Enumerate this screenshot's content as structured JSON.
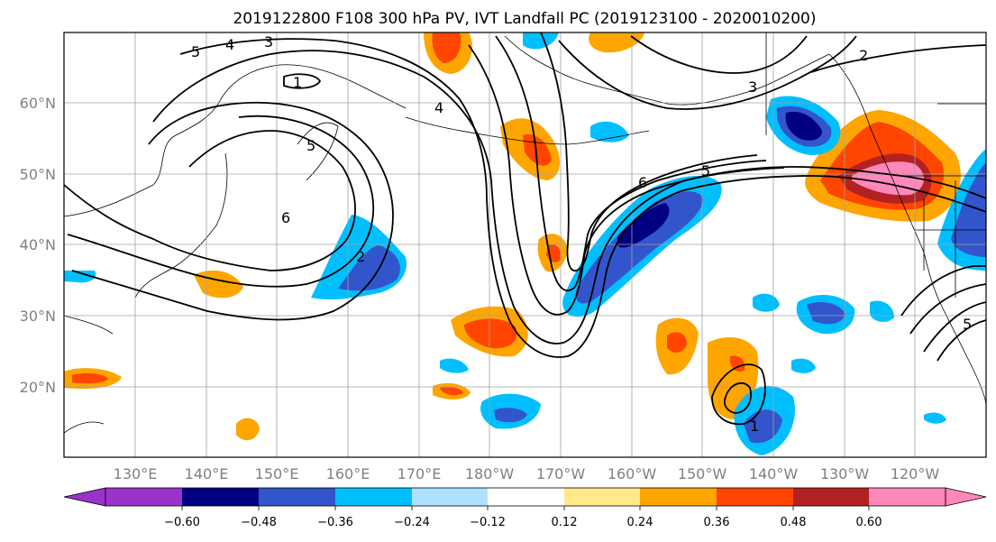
{
  "map": {
    "title": "2019122800 F108 300 hPa PV, IVT Landfall PC (2019123100 - 2020010200)",
    "lat_ticks": [
      "60°N",
      "50°N",
      "40°N",
      "30°N",
      "20°N"
    ],
    "lon_ticks": [
      "130°E",
      "140°E",
      "150°E",
      "160°E",
      "170°E",
      "180°W",
      "170°W",
      "160°W",
      "150°W",
      "140°W",
      "130°W",
      "120°W"
    ],
    "pv_contour_labels": [
      "5",
      "4",
      "3",
      "1",
      "4",
      "5",
      "6",
      "5",
      "6",
      "2",
      "2",
      "3",
      "5",
      "1"
    ]
  },
  "colorbar": {
    "colors": [
      "#9933cc",
      "#000080",
      "#3355cc",
      "#00bfff",
      "#b0e0ff",
      "#ffffff",
      "#ffe98a",
      "#ffa500",
      "#ff4500",
      "#b22222",
      "#ff88bb"
    ],
    "tick_labels": [
      "−0.60",
      "−0.48",
      "−0.36",
      "−0.24",
      "−0.12",
      "0.12",
      "0.24",
      "0.36",
      "0.48",
      "0.60"
    ]
  }
}
